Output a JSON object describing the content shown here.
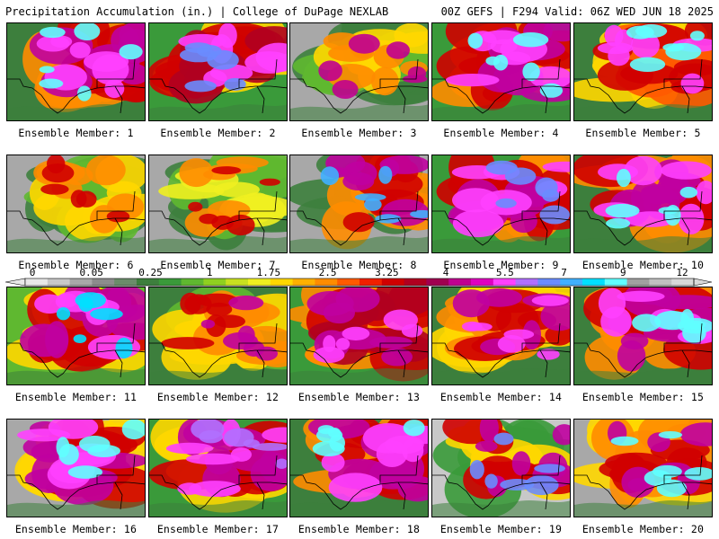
{
  "header": {
    "title_left": "Precipitation Accumulation (in.) | College of DuPage NEXLAB",
    "title_right": "00Z GEFS | F294 Valid: 06Z WED JUN 18 2025"
  },
  "colorbar": {
    "labels": [
      "0",
      "0.05",
      "0.25",
      "1",
      "1.75",
      "2.5",
      "3.25",
      "4",
      "5.5",
      "7",
      "9",
      "12"
    ],
    "colors": [
      "#e8e8e8",
      "#c8c8c8",
      "#a8a8a8",
      "#8c8c8c",
      "#6a8c6a",
      "#3d7f3d",
      "#3a9a3a",
      "#5fb830",
      "#8fd020",
      "#c8e020",
      "#f0f020",
      "#ffd700",
      "#ffb000",
      "#ff8c00",
      "#ff5a00",
      "#f02000",
      "#d00000",
      "#b00020",
      "#a00050",
      "#c00090",
      "#e000c0",
      "#ff40ff",
      "#b070ff",
      "#6a8cff",
      "#40b0ff",
      "#00e0ff",
      "#60ffff",
      "#a0a0a0",
      "#c0c0c0",
      "#d8d8d8"
    ]
  },
  "members": [
    {
      "label": "Ensemble Member: 1",
      "colors": [
        "#3d7f3d",
        "#ff8c00",
        "#d00000",
        "#c000a0",
        "#ff40ff",
        "#60ffff"
      ]
    },
    {
      "label": "Ensemble Member: 2",
      "colors": [
        "#3a9a3a",
        "#ffd700",
        "#d00000",
        "#b00020",
        "#ff40ff",
        "#6a8cff"
      ]
    },
    {
      "label": "Ensemble Member: 3",
      "colors": [
        "#a8a8a8",
        "#3d7f3d",
        "#5fb830",
        "#ffd700",
        "#ff8c00",
        "#c00090"
      ]
    },
    {
      "label": "Ensemble Member: 4",
      "colors": [
        "#3a9a3a",
        "#ff8c00",
        "#d00000",
        "#c000a0",
        "#ff40ff",
        "#60ffff"
      ]
    },
    {
      "label": "Ensemble Member: 5",
      "colors": [
        "#3d7f3d",
        "#ffd700",
        "#ff5a00",
        "#d00000",
        "#ff40ff",
        "#60ffff"
      ]
    },
    {
      "label": "Ensemble Member: 6",
      "colors": [
        "#a8a8a8",
        "#3d7f3d",
        "#5fb830",
        "#ffd700",
        "#ff8c00",
        "#d00000"
      ]
    },
    {
      "label": "Ensemble Member: 7",
      "colors": [
        "#a8a8a8",
        "#3d7f3d",
        "#5fb830",
        "#f0f020",
        "#ff8c00",
        "#d00000"
      ]
    },
    {
      "label": "Ensemble Member: 8",
      "colors": [
        "#a8a8a8",
        "#3d7f3d",
        "#ff8c00",
        "#d00000",
        "#c000a0",
        "#40b0ff"
      ]
    },
    {
      "label": "Ensemble Member: 9",
      "colors": [
        "#3a9a3a",
        "#ff8c00",
        "#d00000",
        "#c000a0",
        "#ff40ff",
        "#6a8cff"
      ]
    },
    {
      "label": "Ensemble Member: 10",
      "colors": [
        "#3d7f3d",
        "#ff8c00",
        "#d00000",
        "#c000a0",
        "#ff40ff",
        "#60ffff"
      ]
    },
    {
      "label": "Ensemble Member: 11",
      "colors": [
        "#5fb830",
        "#ffd700",
        "#d00000",
        "#c000a0",
        "#ff40ff",
        "#00e0ff"
      ]
    },
    {
      "label": "Ensemble Member: 12",
      "colors": [
        "#3d7f3d",
        "#5fb830",
        "#ffd700",
        "#ff8c00",
        "#d00000",
        "#c000a0"
      ]
    },
    {
      "label": "Ensemble Member: 13",
      "colors": [
        "#3a9a3a",
        "#ff8c00",
        "#d00000",
        "#b00020",
        "#c000a0",
        "#ff40ff"
      ]
    },
    {
      "label": "Ensemble Member: 14",
      "colors": [
        "#3d7f3d",
        "#ffd700",
        "#ff8c00",
        "#d00000",
        "#c000a0",
        "#ff40ff"
      ]
    },
    {
      "label": "Ensemble Member: 15",
      "colors": [
        "#3d7f3d",
        "#ff8c00",
        "#d00000",
        "#c000a0",
        "#ff40ff",
        "#60ffff"
      ]
    },
    {
      "label": "Ensemble Member: 16",
      "colors": [
        "#a8a8a8",
        "#ffd700",
        "#d00000",
        "#c000a0",
        "#ff40ff",
        "#60ffff"
      ]
    },
    {
      "label": "Ensemble Member: 17",
      "colors": [
        "#3a9a3a",
        "#ffd700",
        "#d00000",
        "#c000a0",
        "#ff40ff",
        "#b070ff"
      ]
    },
    {
      "label": "Ensemble Member: 18",
      "colors": [
        "#3d7f3d",
        "#ff8c00",
        "#d00000",
        "#c000a0",
        "#ff40ff",
        "#60ffff"
      ]
    },
    {
      "label": "Ensemble Member: 19",
      "colors": [
        "#c8c8c8",
        "#3a9a3a",
        "#ffd700",
        "#d00000",
        "#c000a0",
        "#6a8cff"
      ]
    },
    {
      "label": "Ensemble Member: 20",
      "colors": [
        "#a8a8a8",
        "#ffd700",
        "#ff8c00",
        "#d00000",
        "#c000a0",
        "#60ffff"
      ]
    }
  ]
}
